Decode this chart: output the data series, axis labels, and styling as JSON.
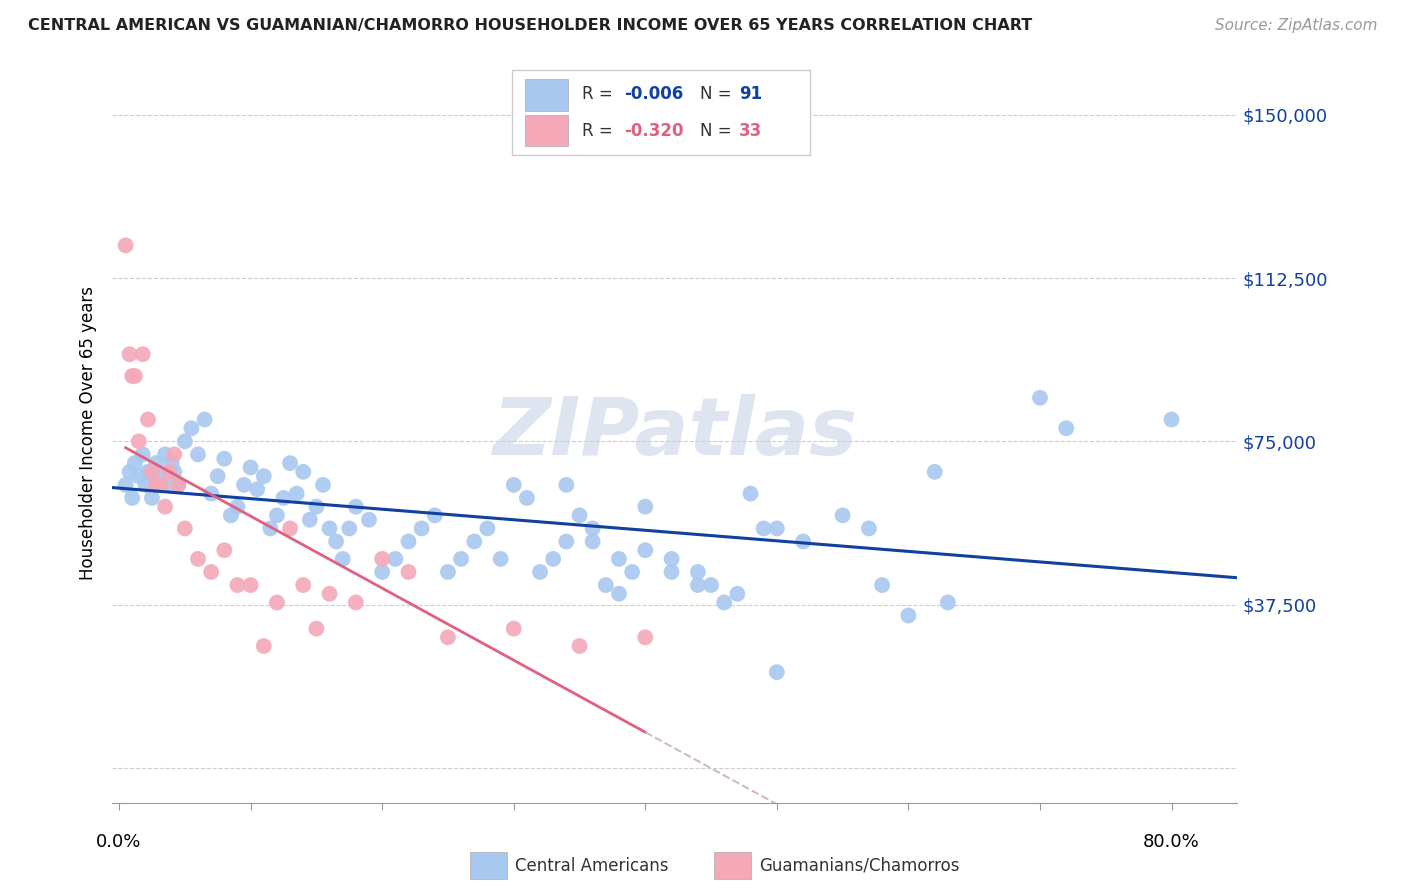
{
  "title": "CENTRAL AMERICAN VS GUAMANIAN/CHAMORRO HOUSEHOLDER INCOME OVER 65 YEARS CORRELATION CHART",
  "source": "Source: ZipAtlas.com",
  "ylabel": "Householder Income Over 65 years",
  "yticks": [
    0,
    37500,
    75000,
    112500,
    150000
  ],
  "ytick_labels": [
    "",
    "$37,500",
    "$75,000",
    "$112,500",
    "$150,000"
  ],
  "ylim": [
    -8000,
    162000
  ],
  "xlim": [
    -0.005,
    0.85
  ],
  "blue_color": "#A8C8F0",
  "pink_color": "#F4A8B8",
  "blue_line_color": "#1040A0",
  "pink_line_color": "#E06080",
  "pink_dashed_color": "#D0B8C8",
  "watermark_color": "#C8D4E8",
  "legend_R1": "-0.006",
  "legend_N1": "91",
  "legend_R2": "-0.320",
  "legend_N2": "33",
  "blue_scatter_x": [
    0.005,
    0.008,
    0.01,
    0.012,
    0.015,
    0.018,
    0.02,
    0.022,
    0.025,
    0.028,
    0.03,
    0.032,
    0.035,
    0.038,
    0.04,
    0.042,
    0.045,
    0.05,
    0.055,
    0.06,
    0.065,
    0.07,
    0.075,
    0.08,
    0.085,
    0.09,
    0.095,
    0.1,
    0.105,
    0.11,
    0.115,
    0.12,
    0.125,
    0.13,
    0.135,
    0.14,
    0.145,
    0.15,
    0.155,
    0.16,
    0.165,
    0.17,
    0.175,
    0.18,
    0.19,
    0.2,
    0.21,
    0.22,
    0.23,
    0.24,
    0.25,
    0.26,
    0.27,
    0.28,
    0.29,
    0.3,
    0.31,
    0.32,
    0.33,
    0.34,
    0.35,
    0.36,
    0.37,
    0.38,
    0.39,
    0.4,
    0.42,
    0.44,
    0.45,
    0.46,
    0.47,
    0.48,
    0.49,
    0.5,
    0.52,
    0.55,
    0.57,
    0.58,
    0.6,
    0.62,
    0.63,
    0.7,
    0.72,
    0.8,
    0.34,
    0.36,
    0.38,
    0.4,
    0.42,
    0.44,
    0.5
  ],
  "blue_scatter_y": [
    65000,
    68000,
    62000,
    70000,
    67000,
    72000,
    65000,
    68000,
    62000,
    70000,
    67000,
    65000,
    72000,
    65000,
    70000,
    68000,
    65000,
    75000,
    78000,
    72000,
    80000,
    63000,
    67000,
    71000,
    58000,
    60000,
    65000,
    69000,
    64000,
    67000,
    55000,
    58000,
    62000,
    70000,
    63000,
    68000,
    57000,
    60000,
    65000,
    55000,
    52000,
    48000,
    55000,
    60000,
    57000,
    45000,
    48000,
    52000,
    55000,
    58000,
    45000,
    48000,
    52000,
    55000,
    48000,
    65000,
    62000,
    45000,
    48000,
    52000,
    58000,
    55000,
    42000,
    40000,
    45000,
    60000,
    48000,
    45000,
    42000,
    38000,
    40000,
    63000,
    55000,
    22000,
    52000,
    58000,
    55000,
    42000,
    35000,
    68000,
    38000,
    85000,
    78000,
    80000,
    65000,
    52000,
    48000,
    50000,
    45000,
    42000,
    55000
  ],
  "pink_scatter_x": [
    0.005,
    0.008,
    0.01,
    0.012,
    0.015,
    0.018,
    0.022,
    0.025,
    0.028,
    0.032,
    0.035,
    0.038,
    0.042,
    0.045,
    0.05,
    0.06,
    0.07,
    0.08,
    0.09,
    0.1,
    0.11,
    0.12,
    0.13,
    0.14,
    0.15,
    0.16,
    0.18,
    0.2,
    0.22,
    0.25,
    0.3,
    0.35,
    0.4
  ],
  "pink_scatter_y": [
    120000,
    95000,
    90000,
    90000,
    75000,
    95000,
    80000,
    68000,
    65000,
    65000,
    60000,
    68000,
    72000,
    65000,
    55000,
    48000,
    45000,
    50000,
    42000,
    42000,
    28000,
    38000,
    55000,
    42000,
    32000,
    40000,
    38000,
    48000,
    45000,
    30000,
    32000,
    28000,
    30000
  ]
}
